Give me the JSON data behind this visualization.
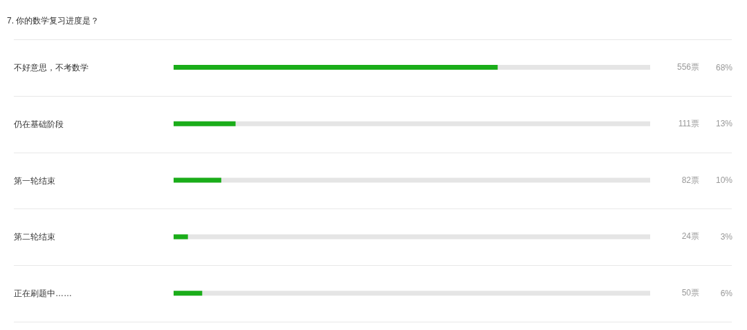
{
  "chart_data": {
    "type": "bar",
    "orientation": "horizontal",
    "title": "7. 你的数学复习进度是？",
    "categories": [
      "不好意思，不考数学",
      "仍在基础阶段",
      "第一轮结束",
      "第二轮结束",
      "正在刷题中……"
    ],
    "values": [
      68,
      13,
      10,
      3,
      6
    ],
    "value_labels": [
      "68%",
      "13%",
      "10%",
      "3%",
      "6%"
    ],
    "annotations": [
      "556票",
      "111票",
      "82票",
      "24票",
      "50票"
    ],
    "color": "#1aad19",
    "tick_labels": "y",
    "grid": "y"
  }
}
